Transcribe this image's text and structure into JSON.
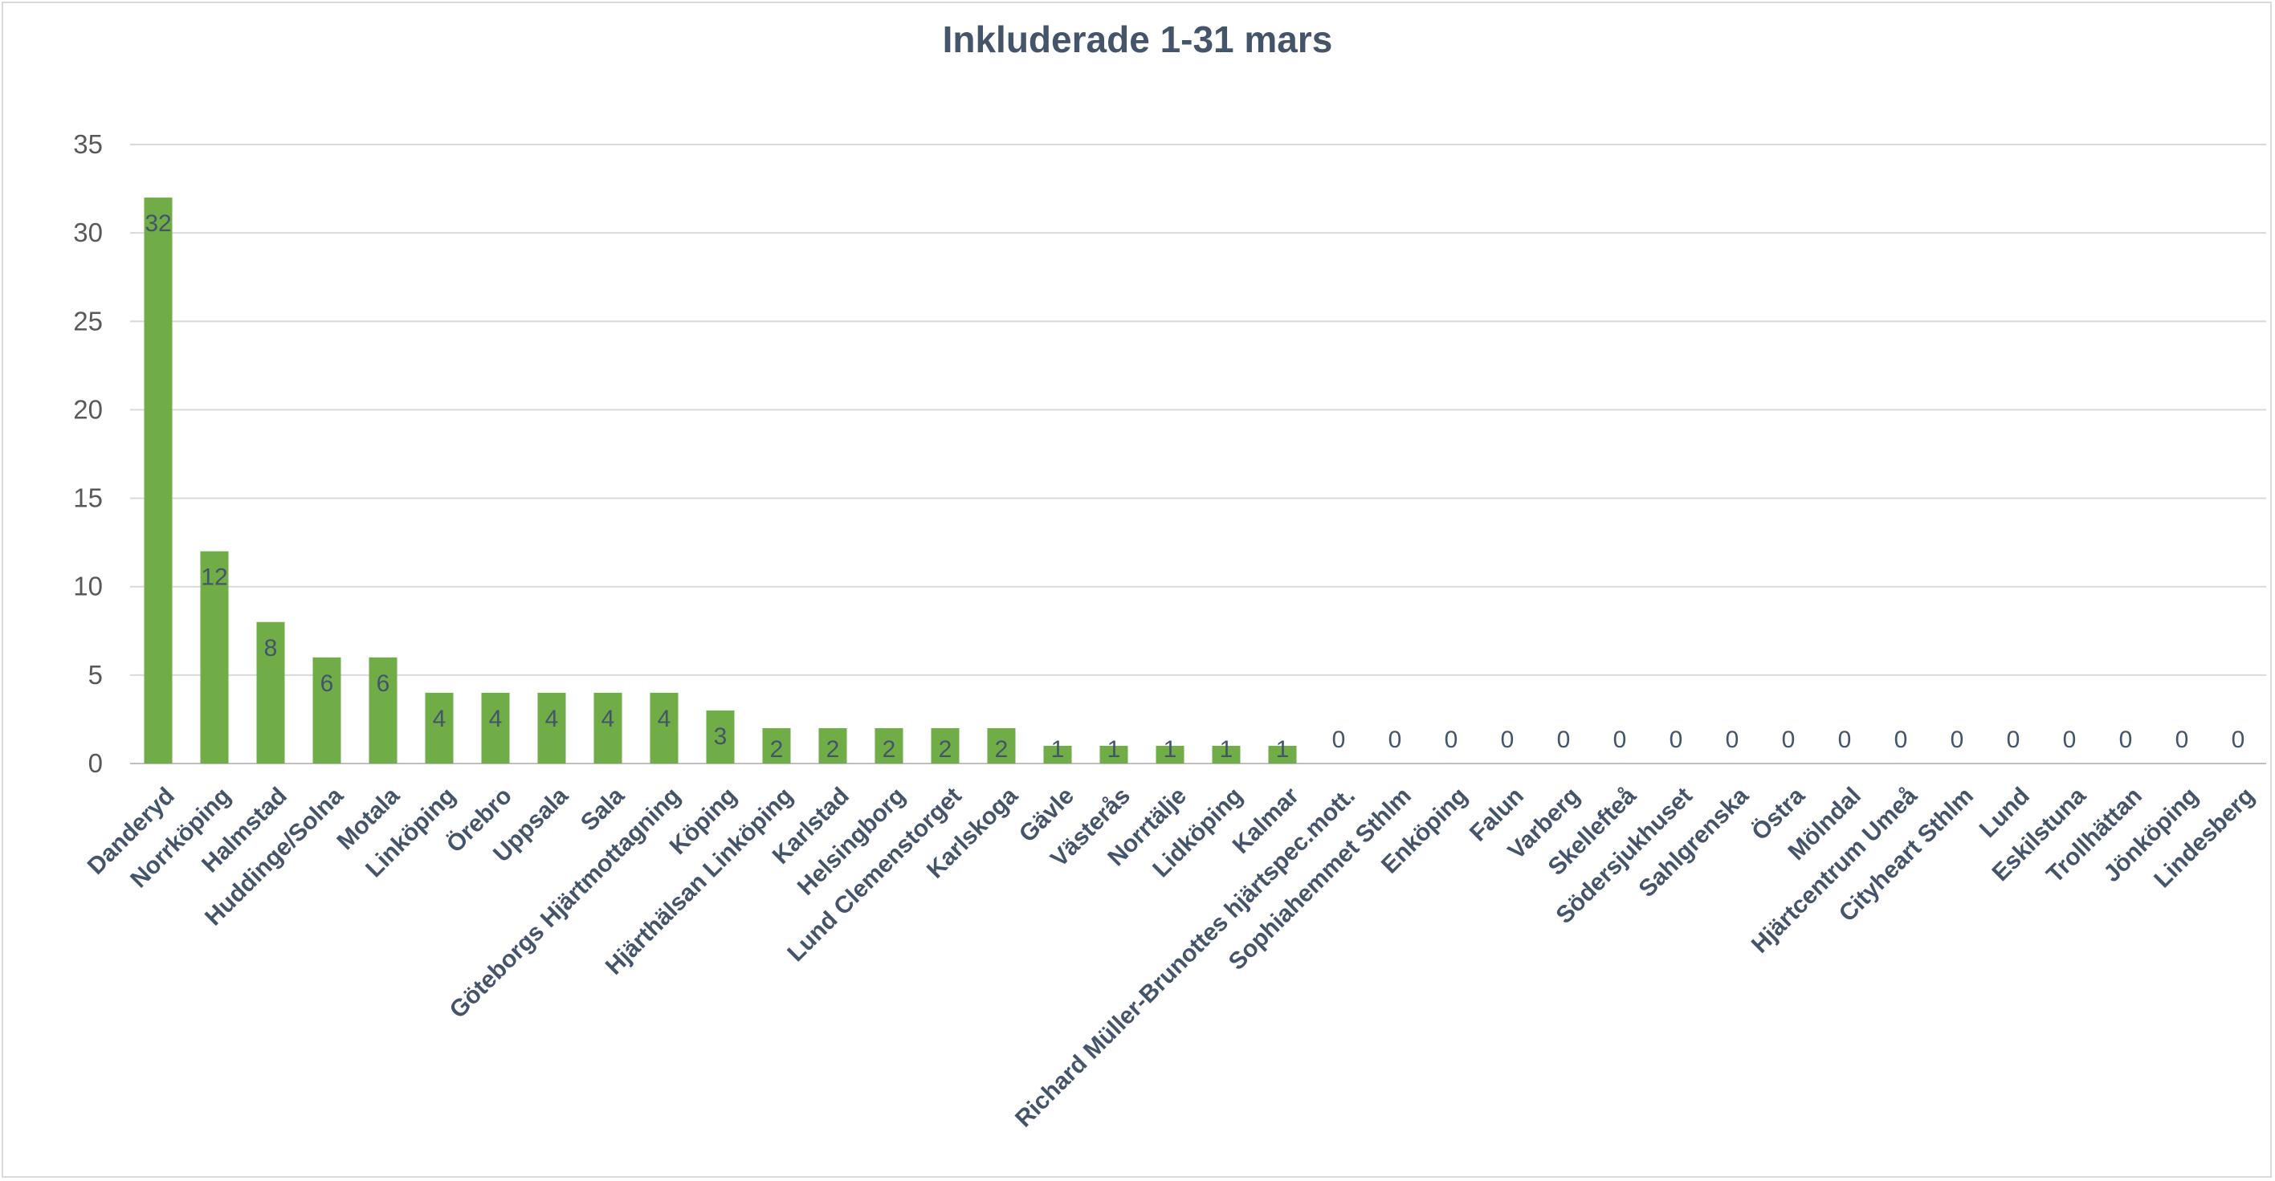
{
  "chart_data": {
    "type": "bar",
    "title": "Inkluderade 1-31 mars",
    "xlabel": "",
    "ylabel": "",
    "ylim": [
      0,
      35
    ],
    "yticks": [
      0,
      5,
      10,
      15,
      20,
      25,
      30,
      35
    ],
    "grid": true,
    "legend": "none",
    "bar_color": "#70ad47",
    "categories": [
      "Danderyd",
      "Norrköping",
      "Halmstad",
      "Huddinge/Solna",
      "Motala",
      "Linköping",
      "Örebro",
      "Uppsala",
      "Sala",
      "Göteborgs Hjärtmottagning",
      "Köping",
      "Hjärthälsan Linköping",
      "Karlstad",
      "Helsingborg",
      "Lund Clemenstorget",
      "Karlskoga",
      "Gävle",
      "Västerås",
      "Norrtälje",
      "Lidköping",
      "Kalmar",
      "Richard Müller-Brunottes hjärtspec.mott.",
      "Sophiahemmet Sthlm",
      "Enköping",
      "Falun",
      "Varberg",
      "Skellefteå",
      "Södersjukhuset",
      "Sahlgrenska",
      "Östra",
      "Mölndal",
      "Hjärtcentrum Umeå",
      "Cityheart Sthlm",
      "Lund",
      "Eskilstuna",
      "Trollhättan",
      "Jönköping",
      "Lindesberg"
    ],
    "values": [
      32,
      12,
      8,
      6,
      6,
      4,
      4,
      4,
      4,
      4,
      3,
      2,
      2,
      2,
      2,
      2,
      1,
      1,
      1,
      1,
      1,
      0,
      0,
      0,
      0,
      0,
      0,
      0,
      0,
      0,
      0,
      0,
      0,
      0,
      0,
      0,
      0,
      0
    ]
  }
}
